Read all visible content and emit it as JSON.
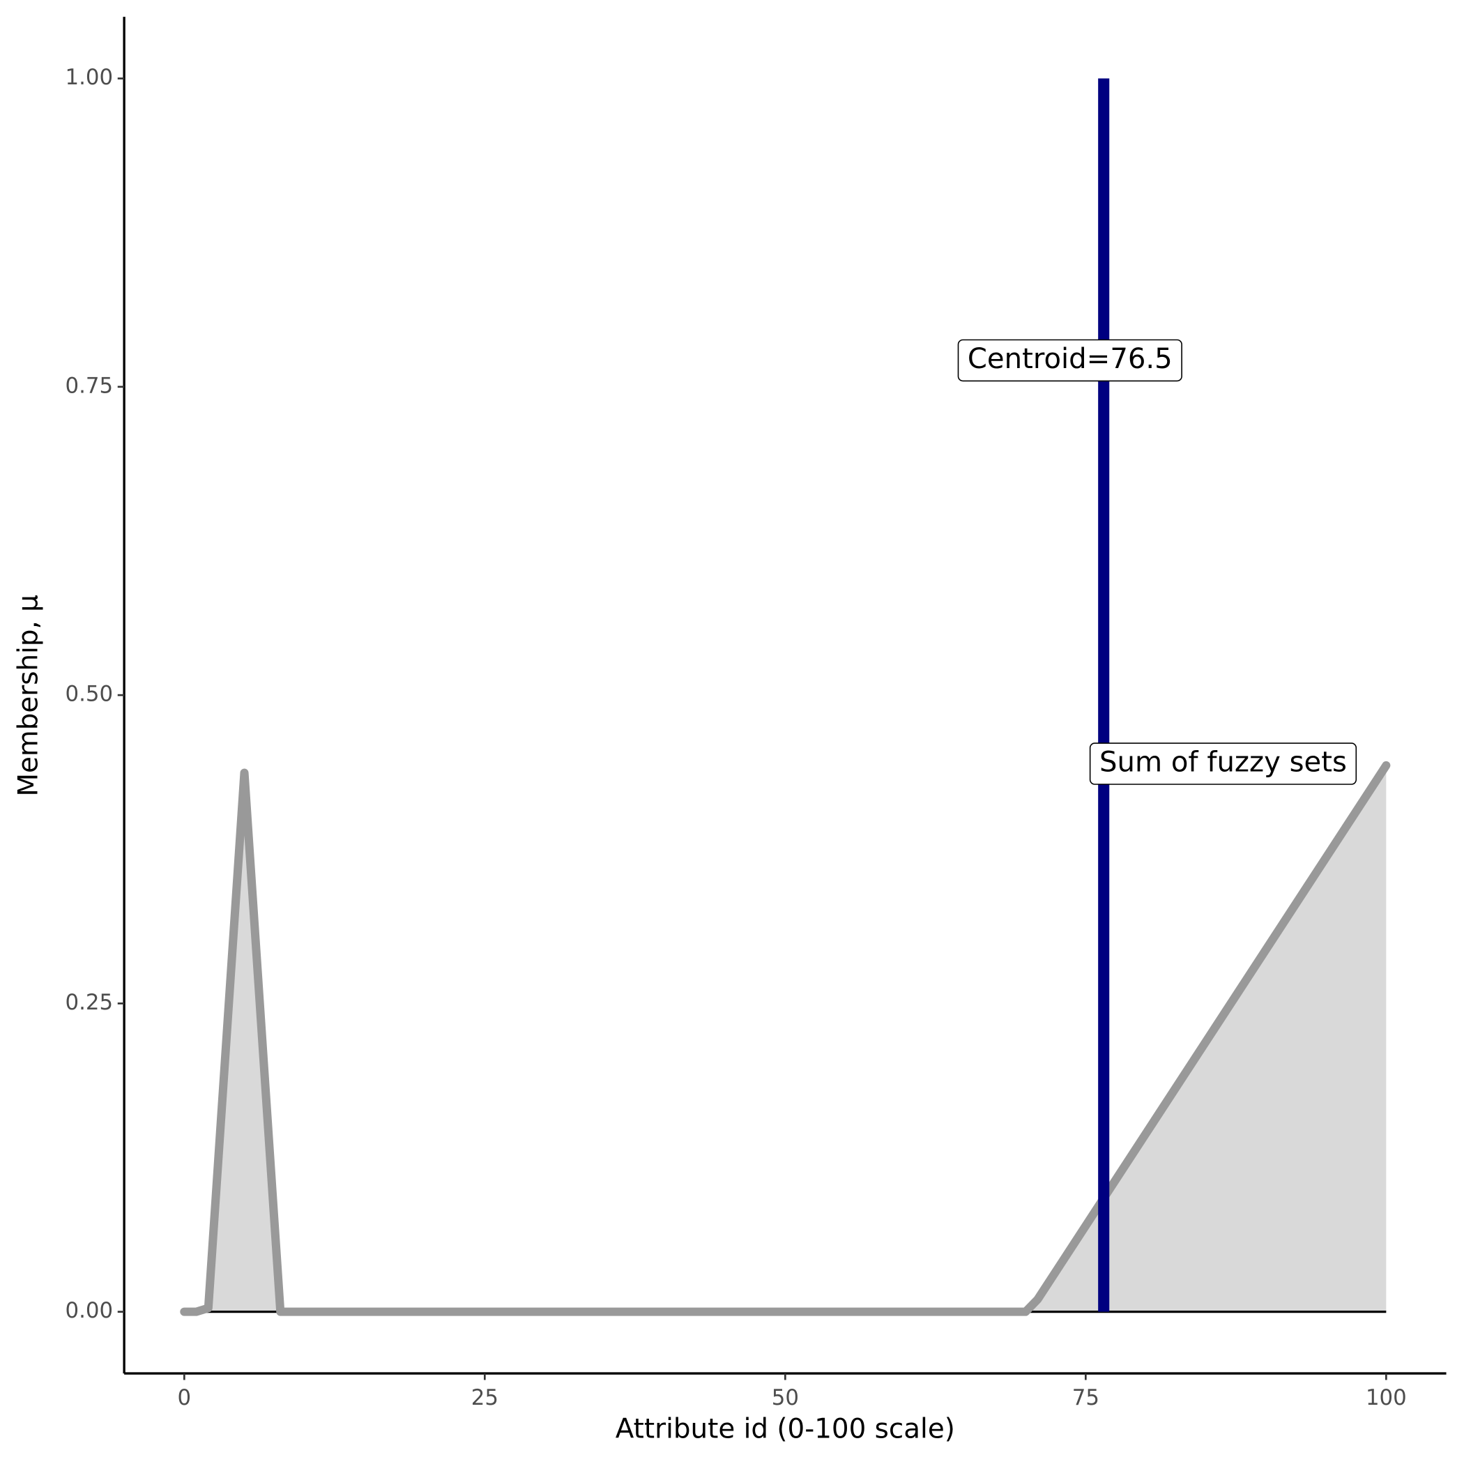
{
  "chart_data": {
    "type": "area",
    "x_label": "Attribute id (0-100 scale)",
    "y_label": "Membership, μ",
    "x": [
      0,
      1,
      2,
      5,
      8,
      70,
      71,
      100
    ],
    "series": [
      {
        "name": "Sum of fuzzy sets",
        "color": "#999999",
        "fill": "#d9d9d9",
        "values": [
          0,
          0,
          0.003,
          0.437,
          0,
          0,
          0.01,
          0.443
        ]
      }
    ],
    "centroid": {
      "label": "Centroid=76.5",
      "x": 76.5,
      "y": [
        0,
        1
      ],
      "color": "#000080"
    },
    "xlim": [
      -5,
      105
    ],
    "xticks": [
      0,
      25,
      50,
      75,
      100
    ],
    "ylim": [
      -0.05,
      1.05
    ],
    "yticks": [
      {
        "value": 0,
        "label": "0.00"
      },
      {
        "value": 0.25,
        "label": "0.25"
      },
      {
        "value": 0.5,
        "label": "0.50"
      },
      {
        "value": 0.75,
        "label": "0.75"
      },
      {
        "value": 1,
        "label": "1.00"
      }
    ]
  }
}
